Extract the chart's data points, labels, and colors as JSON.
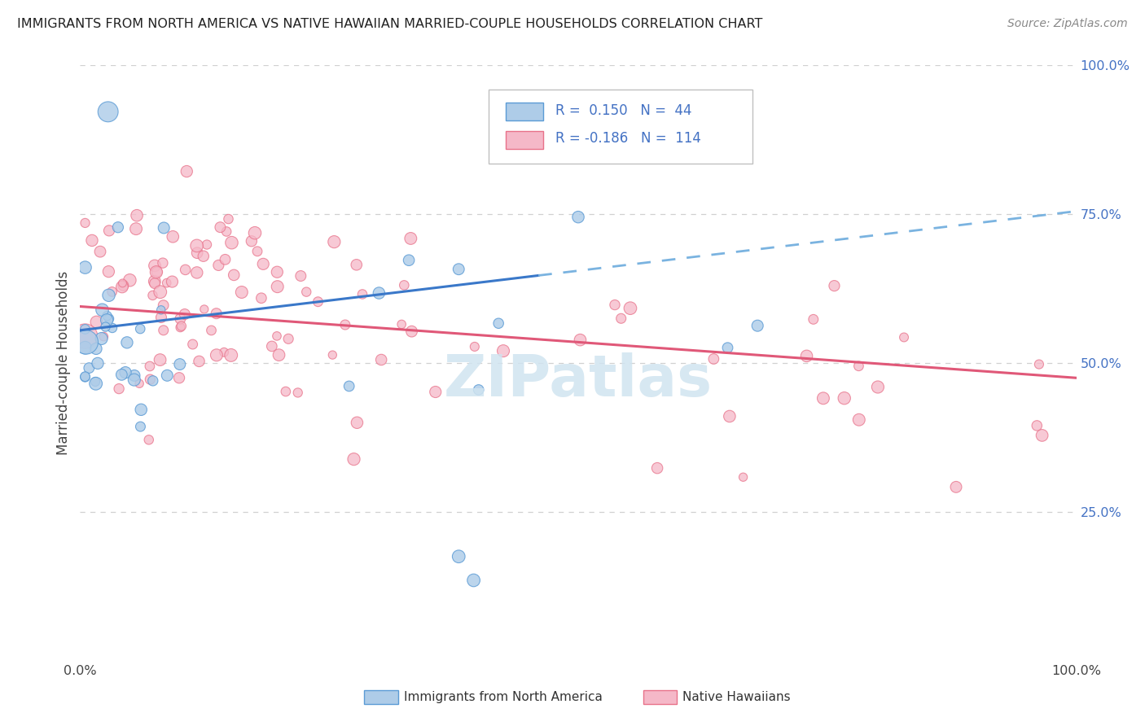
{
  "title": "IMMIGRANTS FROM NORTH AMERICA VS NATIVE HAWAIIAN MARRIED-COUPLE HOUSEHOLDS CORRELATION CHART",
  "source": "Source: ZipAtlas.com",
  "ylabel": "Married-couple Households",
  "legend_label1": "Immigrants from North America",
  "legend_label2": "Native Hawaiians",
  "r1": 0.15,
  "n1": 44,
  "r2": -0.186,
  "n2": 114,
  "color_blue": "#aecce8",
  "color_pink": "#f5b8c8",
  "edge_blue": "#5b9bd5",
  "edge_pink": "#e8728a",
  "line_blue_solid": "#3a78c9",
  "line_blue_dash": "#7ab3e0",
  "line_pink": "#e05878",
  "watermark_color": "#d0e4f0",
  "grid_color": "#d0d0d0",
  "right_axis_color": "#4472c4",
  "title_color": "#222222",
  "source_color": "#888888",
  "tick_color": "#444444"
}
